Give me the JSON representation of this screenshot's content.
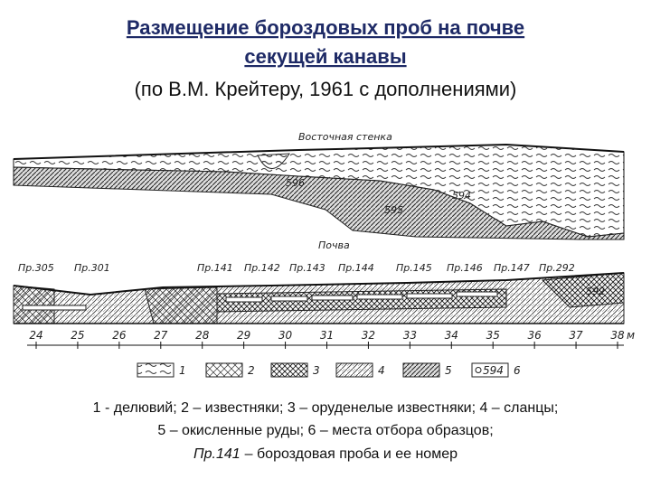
{
  "header": {
    "title_lines": [
      "Размещение бороздовых проб на почве",
      "секущей канавы"
    ],
    "subtitle": "(по В.М. Крейтеру, 1961 с дополнениями)"
  },
  "diagram": {
    "upper": {
      "label": "Восточная стенка",
      "samples": [
        "596",
        "594",
        "595"
      ]
    },
    "floor_label": "Почва",
    "lower": {
      "samples": [
        "Пр.305",
        "Пр.301",
        "Пр.141",
        "Пр.142",
        "Пр.143",
        "Пр.144",
        "Пр.145",
        "Пр.146",
        "Пр.147",
        "Пр.292"
      ],
      "sample_number": "592"
    },
    "scale": {
      "ticks": [
        24,
        25,
        26,
        27,
        28,
        29,
        30,
        31,
        32,
        33,
        34,
        35,
        36,
        37,
        38
      ],
      "unit": "м"
    },
    "legend": {
      "items": [
        "1",
        "2",
        "3",
        "4",
        "5",
        "6"
      ],
      "sample_example": "594"
    }
  },
  "caption": {
    "lines": [
      "1 - делювий; 2 – известняки; 3 – оруденелые известняки; 4 – сланцы;",
      "5 – окисленные руды; 6 – места отбора образцов;"
    ],
    "example_name": "Пр.141",
    "example_text": "– бороздовая проба и ее номер"
  }
}
